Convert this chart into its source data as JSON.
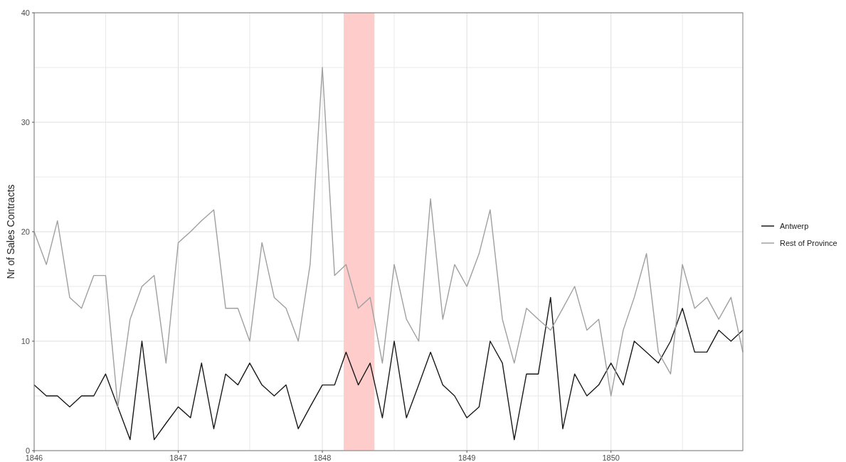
{
  "chart_data": {
    "type": "line",
    "ylabel": "Nr of Sales Contracts",
    "x": [
      "1846-01",
      "1846-02",
      "1846-03",
      "1846-04",
      "1846-05",
      "1846-06",
      "1846-07",
      "1846-08",
      "1846-09",
      "1846-10",
      "1846-11",
      "1846-12",
      "1847-01",
      "1847-02",
      "1847-03",
      "1847-04",
      "1847-05",
      "1847-06",
      "1847-07",
      "1847-08",
      "1847-09",
      "1847-10",
      "1847-11",
      "1847-12",
      "1848-01",
      "1848-02",
      "1848-03",
      "1848-04",
      "1848-05",
      "1848-06",
      "1848-07",
      "1848-08",
      "1848-09",
      "1848-10",
      "1848-11",
      "1848-12",
      "1849-01",
      "1849-02",
      "1849-03",
      "1849-04",
      "1849-05",
      "1849-06",
      "1849-07",
      "1849-08",
      "1849-09",
      "1849-10",
      "1849-11",
      "1849-12",
      "1850-01",
      "1850-02",
      "1850-03",
      "1850-04",
      "1850-05",
      "1850-06",
      "1850-07",
      "1850-08",
      "1850-09",
      "1850-10",
      "1850-11",
      "1850-12"
    ],
    "series": [
      {
        "name": "Antwerp",
        "color": "#1a1a1a",
        "values": [
          6,
          5,
          5,
          4,
          5,
          5,
          7,
          4,
          1,
          10,
          1,
          2.5,
          4,
          3,
          8,
          2,
          7,
          6,
          8,
          6,
          5,
          6,
          2,
          4,
          6,
          6,
          9,
          6,
          8,
          3,
          10,
          3,
          6,
          9,
          6,
          5,
          3,
          4,
          10,
          8,
          1,
          7,
          7,
          14,
          2,
          7,
          5,
          6,
          8,
          6,
          10,
          9,
          8,
          10,
          13,
          9,
          9,
          11,
          10,
          11
        ]
      },
      {
        "name": "Rest of Province",
        "color": "#a0a0a0",
        "values": [
          20,
          17,
          21,
          14,
          13,
          16,
          16,
          4,
          12,
          15,
          16,
          8,
          19,
          20,
          21,
          22,
          13,
          13,
          10,
          19,
          14,
          13,
          10,
          17,
          35,
          16,
          17,
          13,
          14,
          8,
          17,
          12,
          10,
          23,
          12,
          17,
          15,
          18,
          22,
          12,
          8,
          13,
          12,
          11,
          13,
          15,
          11,
          12,
          5,
          11,
          14,
          18,
          9,
          7,
          17,
          13,
          14,
          12,
          14,
          9
        ]
      }
    ],
    "xlim": [
      "1846-01",
      "1850-12"
    ],
    "xticks": [
      "1846",
      {
        "value": "1846-07",
        "label": null
      },
      "1847",
      {
        "value": "1847-07",
        "label": null
      },
      "1848",
      {
        "value": "1848-07",
        "label": null
      },
      "1849",
      {
        "value": "1849-07",
        "label": null
      },
      "1850",
      {
        "value": "1850-07",
        "label": null
      }
    ],
    "ylim": [
      0,
      40
    ],
    "yticks": [
      0,
      {
        "value": 5,
        "label": null
      },
      10,
      {
        "value": 15,
        "label": null
      },
      20,
      {
        "value": 25,
        "label": null
      },
      30,
      {
        "value": 35,
        "label": null
      },
      40
    ],
    "bands": [
      {
        "axis": "x",
        "from": "1848-02-24",
        "to": "1848-05-12",
        "color": "#ffcccc"
      }
    ],
    "grid": true,
    "legend": "right",
    "line_style": "solid",
    "marker": "none"
  }
}
